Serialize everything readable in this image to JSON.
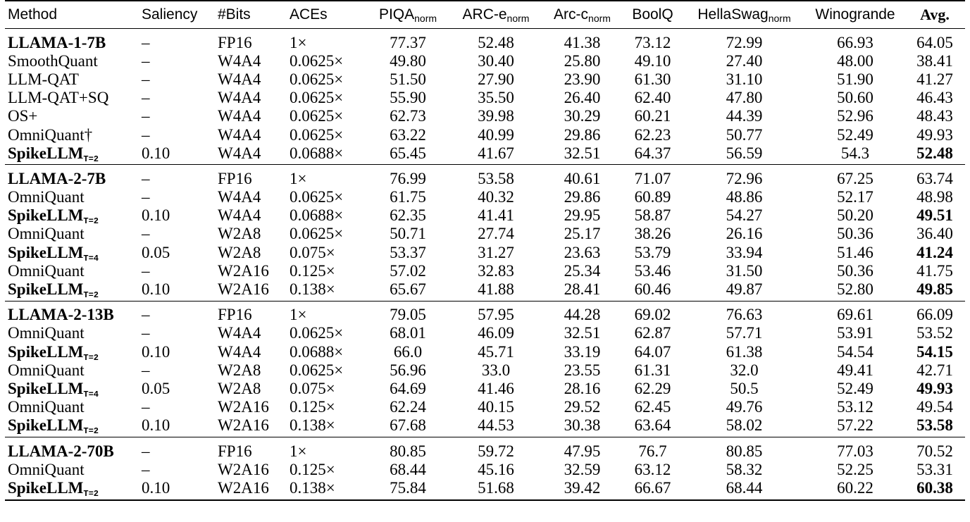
{
  "columns": [
    {
      "text": "Method",
      "sub": ""
    },
    {
      "text": "Saliency",
      "sub": ""
    },
    {
      "text": "#Bits",
      "sub": ""
    },
    {
      "text": "ACEs",
      "sub": ""
    },
    {
      "text": "PIQA",
      "sub": "norm"
    },
    {
      "text": "ARC-e",
      "sub": "norm"
    },
    {
      "text": "Arc-c",
      "sub": "norm"
    },
    {
      "text": "BoolQ",
      "sub": ""
    },
    {
      "text": "HellaSwag",
      "sub": "norm"
    },
    {
      "text": "Winogrande",
      "sub": ""
    },
    {
      "text": "Avg.",
      "sub": ""
    }
  ],
  "groups": [
    {
      "rows": [
        {
          "method": "LLAMA-1-7B",
          "method_sub": "",
          "method_bold": true,
          "saliency": "–",
          "bits": "FP16",
          "aces": "1×",
          "piqa": "77.37",
          "arc_e": "52.48",
          "arc_c": "41.38",
          "boolq": "73.12",
          "hellaswag": "72.99",
          "winogrande": "66.93",
          "avg": "64.05",
          "avg_bold": false
        },
        {
          "method": "SmoothQuant",
          "method_sub": "",
          "method_bold": false,
          "saliency": "–",
          "bits": "W4A4",
          "aces": "0.0625×",
          "piqa": "49.80",
          "arc_e": "30.40",
          "arc_c": "25.80",
          "boolq": "49.10",
          "hellaswag": "27.40",
          "winogrande": "48.00",
          "avg": "38.41",
          "avg_bold": false
        },
        {
          "method": "LLM-QAT",
          "method_sub": "",
          "method_bold": false,
          "saliency": "–",
          "bits": "W4A4",
          "aces": "0.0625×",
          "piqa": "51.50",
          "arc_e": "27.90",
          "arc_c": "23.90",
          "boolq": "61.30",
          "hellaswag": "31.10",
          "winogrande": "51.90",
          "avg": "41.27",
          "avg_bold": false
        },
        {
          "method": "LLM-QAT+SQ",
          "method_sub": "",
          "method_bold": false,
          "saliency": "–",
          "bits": "W4A4",
          "aces": "0.0625×",
          "piqa": "55.90",
          "arc_e": "35.50",
          "arc_c": "26.40",
          "boolq": "62.40",
          "hellaswag": "47.80",
          "winogrande": "50.60",
          "avg": "46.43",
          "avg_bold": false
        },
        {
          "method": "OS+",
          "method_sub": "",
          "method_bold": false,
          "saliency": "–",
          "bits": "W4A4",
          "aces": "0.0625×",
          "piqa": "62.73",
          "arc_e": "39.98",
          "arc_c": "30.29",
          "boolq": "60.21",
          "hellaswag": "44.39",
          "winogrande": "52.96",
          "avg": "48.43",
          "avg_bold": false
        },
        {
          "method": "OmniQuant†",
          "method_sub": "",
          "method_bold": false,
          "saliency": "–",
          "bits": "W4A4",
          "aces": "0.0625×",
          "piqa": "63.22",
          "arc_e": "40.99",
          "arc_c": "29.86",
          "boolq": "62.23",
          "hellaswag": "50.77",
          "winogrande": "52.49",
          "avg": "49.93",
          "avg_bold": false
        },
        {
          "method": "SpikeLLM",
          "method_sub": "T=2",
          "method_bold": true,
          "saliency": "0.10",
          "bits": "W4A4",
          "aces": "0.0688×",
          "piqa": "65.45",
          "arc_e": "41.67",
          "arc_c": "32.51",
          "boolq": "64.37",
          "hellaswag": "56.59",
          "winogrande": "54.3",
          "avg": "52.48",
          "avg_bold": true
        }
      ]
    },
    {
      "rows": [
        {
          "method": "LLAMA-2-7B",
          "method_sub": "",
          "method_bold": true,
          "saliency": "–",
          "bits": "FP16",
          "aces": "1×",
          "piqa": "76.99",
          "arc_e": "53.58",
          "arc_c": "40.61",
          "boolq": "71.07",
          "hellaswag": "72.96",
          "winogrande": "67.25",
          "avg": "63.74",
          "avg_bold": false
        },
        {
          "method": "OmniQuant",
          "method_sub": "",
          "method_bold": false,
          "saliency": "–",
          "bits": "W4A4",
          "aces": "0.0625×",
          "piqa": "61.75",
          "arc_e": "40.32",
          "arc_c": "29.86",
          "boolq": "60.89",
          "hellaswag": "48.86",
          "winogrande": "52.17",
          "avg": "48.98",
          "avg_bold": false
        },
        {
          "method": "SpikeLLM",
          "method_sub": "T=2",
          "method_bold": true,
          "saliency": "0.10",
          "bits": "W4A4",
          "aces": "0.0688×",
          "piqa": "62.35",
          "arc_e": "41.41",
          "arc_c": "29.95",
          "boolq": "58.87",
          "hellaswag": "54.27",
          "winogrande": "50.20",
          "avg": "49.51",
          "avg_bold": true
        },
        {
          "method": "OmniQuant",
          "method_sub": "",
          "method_bold": false,
          "saliency": "–",
          "bits": "W2A8",
          "aces": "0.0625×",
          "piqa": "50.71",
          "arc_e": "27.74",
          "arc_c": "25.17",
          "boolq": "38.26",
          "hellaswag": "26.16",
          "winogrande": "50.36",
          "avg": "36.40",
          "avg_bold": false
        },
        {
          "method": "SpikeLLM",
          "method_sub": "T=4",
          "method_bold": true,
          "saliency": "0.05",
          "bits": "W2A8",
          "aces": "0.075×",
          "piqa": "53.37",
          "arc_e": "31.27",
          "arc_c": "23.63",
          "boolq": "53.79",
          "hellaswag": "33.94",
          "winogrande": "51.46",
          "avg": "41.24",
          "avg_bold": true
        },
        {
          "method": "OmniQuant",
          "method_sub": "",
          "method_bold": false,
          "saliency": "–",
          "bits": "W2A16",
          "aces": "0.125×",
          "piqa": "57.02",
          "arc_e": "32.83",
          "arc_c": "25.34",
          "boolq": "53.46",
          "hellaswag": "31.50",
          "winogrande": "50.36",
          "avg": "41.75",
          "avg_bold": false
        },
        {
          "method": "SpikeLLM",
          "method_sub": "T=2",
          "method_bold": true,
          "saliency": "0.10",
          "bits": "W2A16",
          "aces": "0.138×",
          "piqa": "65.67",
          "arc_e": "41.88",
          "arc_c": "28.41",
          "boolq": "60.46",
          "hellaswag": "49.87",
          "winogrande": "52.80",
          "avg": "49.85",
          "avg_bold": true
        }
      ]
    },
    {
      "rows": [
        {
          "method": "LLAMA-2-13B",
          "method_sub": "",
          "method_bold": true,
          "saliency": "–",
          "bits": "FP16",
          "aces": "1×",
          "piqa": "79.05",
          "arc_e": "57.95",
          "arc_c": "44.28",
          "boolq": "69.02",
          "hellaswag": "76.63",
          "winogrande": "69.61",
          "avg": "66.09",
          "avg_bold": false
        },
        {
          "method": "OmniQuant",
          "method_sub": "",
          "method_bold": false,
          "saliency": "–",
          "bits": "W4A4",
          "aces": "0.0625×",
          "piqa": "68.01",
          "arc_e": "46.09",
          "arc_c": "32.51",
          "boolq": "62.87",
          "hellaswag": "57.71",
          "winogrande": "53.91",
          "avg": "53.52",
          "avg_bold": false
        },
        {
          "method": "SpikeLLM",
          "method_sub": "T=2",
          "method_bold": true,
          "saliency": "0.10",
          "bits": "W4A4",
          "aces": "0.0688×",
          "piqa": "66.0",
          "arc_e": "45.71",
          "arc_c": "33.19",
          "boolq": "64.07",
          "hellaswag": "61.38",
          "winogrande": "54.54",
          "avg": "54.15",
          "avg_bold": true
        },
        {
          "method": "OmniQuant",
          "method_sub": "",
          "method_bold": false,
          "saliency": "–",
          "bits": "W2A8",
          "aces": "0.0625×",
          "piqa": "56.96",
          "arc_e": "33.0",
          "arc_c": "23.55",
          "boolq": "61.31",
          "hellaswag": "32.0",
          "winogrande": "49.41",
          "avg": "42.71",
          "avg_bold": false
        },
        {
          "method": "SpikeLLM",
          "method_sub": "T=4",
          "method_bold": true,
          "saliency": "0.05",
          "bits": "W2A8",
          "aces": "0.075×",
          "piqa": "64.69",
          "arc_e": "41.46",
          "arc_c": "28.16",
          "boolq": "62.29",
          "hellaswag": "50.5",
          "winogrande": "52.49",
          "avg": "49.93",
          "avg_bold": true
        },
        {
          "method": "OmniQuant",
          "method_sub": "",
          "method_bold": false,
          "saliency": "–",
          "bits": "W2A16",
          "aces": "0.125×",
          "piqa": "62.24",
          "arc_e": "40.15",
          "arc_c": "29.52",
          "boolq": "62.45",
          "hellaswag": "49.76",
          "winogrande": "53.12",
          "avg": "49.54",
          "avg_bold": false
        },
        {
          "method": "SpikeLLM",
          "method_sub": "T=2",
          "method_bold": true,
          "saliency": "0.10",
          "bits": "W2A16",
          "aces": "0.138×",
          "piqa": "67.68",
          "arc_e": "44.53",
          "arc_c": "30.38",
          "boolq": "63.64",
          "hellaswag": "58.02",
          "winogrande": "57.22",
          "avg": "53.58",
          "avg_bold": true
        }
      ]
    },
    {
      "rows": [
        {
          "method": "LLAMA-2-70B",
          "method_sub": "",
          "method_bold": true,
          "saliency": "–",
          "bits": "FP16",
          "aces": "1×",
          "piqa": "80.85",
          "arc_e": "59.72",
          "arc_c": "47.95",
          "boolq": "76.7",
          "hellaswag": "80.85",
          "winogrande": "77.03",
          "avg": "70.52",
          "avg_bold": false
        },
        {
          "method": "OmniQuant",
          "method_sub": "",
          "method_bold": false,
          "saliency": "–",
          "bits": "W2A16",
          "aces": "0.125×",
          "piqa": "68.44",
          "arc_e": "45.16",
          "arc_c": "32.59",
          "boolq": "63.12",
          "hellaswag": "58.32",
          "winogrande": "52.25",
          "avg": "53.31",
          "avg_bold": false
        },
        {
          "method": "SpikeLLM",
          "method_sub": "T=2",
          "method_bold": true,
          "saliency": "0.10",
          "bits": "W2A16",
          "aces": "0.138×",
          "piqa": "75.84",
          "arc_e": "51.68",
          "arc_c": "39.42",
          "boolq": "66.67",
          "hellaswag": "68.44",
          "winogrande": "60.22",
          "avg": "60.38",
          "avg_bold": true
        }
      ]
    }
  ]
}
